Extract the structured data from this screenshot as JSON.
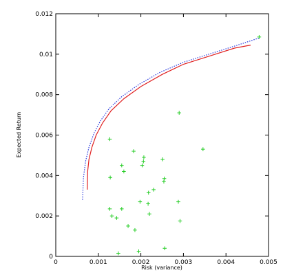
{
  "chart_data": {
    "type": "scatter",
    "xlabel": "Risk (variance)",
    "ylabel": "Expected Return",
    "xlim": [
      0,
      0.005
    ],
    "ylim": [
      0,
      0.012
    ],
    "grid": false,
    "x_ticks": [
      0,
      0.001,
      0.002,
      0.003,
      0.004,
      0.005
    ],
    "x_tick_labels": [
      "0",
      "0.001",
      "0.002",
      "0.003",
      "0.004",
      "0.005"
    ],
    "y_ticks": [
      0,
      0.002,
      0.004,
      0.006,
      0.008,
      0.01,
      0.012
    ],
    "y_tick_labels": [
      "0",
      "0.002",
      "0.004",
      "0.006",
      "0.008",
      "0.01",
      "0.012"
    ],
    "colors": {
      "scatter": "#22cc22",
      "solid_line": "#e02020",
      "dotted_line": "#2233dd",
      "axes": "#000000"
    },
    "series": [
      {
        "style": "line-solid",
        "color": "#e02020",
        "points": [
          [
            0.00074,
            0.0033
          ],
          [
            0.00075,
            0.0042
          ],
          [
            0.00078,
            0.0048
          ],
          [
            0.00085,
            0.0054
          ],
          [
            0.00095,
            0.006
          ],
          [
            0.0011,
            0.0066
          ],
          [
            0.0013,
            0.0072
          ],
          [
            0.0016,
            0.0078
          ],
          [
            0.002,
            0.0084
          ],
          [
            0.0025,
            0.009
          ],
          [
            0.003,
            0.0095
          ],
          [
            0.0036,
            0.0099
          ],
          [
            0.0042,
            0.0103
          ],
          [
            0.00458,
            0.01045
          ]
        ]
      },
      {
        "style": "line-dotted",
        "color": "#2233dd",
        "points": [
          [
            0.00063,
            0.0028
          ],
          [
            0.00065,
            0.0039
          ],
          [
            0.0007,
            0.0047
          ],
          [
            0.00078,
            0.0054
          ],
          [
            0.0009,
            0.0061
          ],
          [
            0.00105,
            0.0067
          ],
          [
            0.00125,
            0.0073
          ],
          [
            0.00155,
            0.0079
          ],
          [
            0.00195,
            0.0085
          ],
          [
            0.00245,
            0.0091
          ],
          [
            0.003,
            0.0096
          ],
          [
            0.0036,
            0.01
          ],
          [
            0.0042,
            0.0104
          ],
          [
            0.00478,
            0.0108
          ]
        ]
      },
      {
        "style": "scatter",
        "marker": "+",
        "color": "#22cc22",
        "points": [
          [
            0.00127,
            0.0058
          ],
          [
            0.00128,
            0.0039
          ],
          [
            0.00127,
            0.00235
          ],
          [
            0.00132,
            0.002
          ],
          [
            0.00143,
            0.0019
          ],
          [
            0.00147,
            0.00015
          ],
          [
            0.00155,
            0.00235
          ],
          [
            0.00155,
            0.0045
          ],
          [
            0.0016,
            0.0042
          ],
          [
            0.0017,
            0.0015
          ],
          [
            0.00183,
            0.0052
          ],
          [
            0.00186,
            0.0013
          ],
          [
            0.00195,
            0.00025
          ],
          [
            0.00198,
            0.0027
          ],
          [
            0.00203,
            0.0045
          ],
          [
            0.00207,
            0.0049
          ],
          [
            0.00206,
            0.0047
          ],
          [
            0.00217,
            0.0026
          ],
          [
            0.00218,
            0.00315
          ],
          [
            0.0022,
            0.0021
          ],
          [
            0.0023,
            0.0033
          ],
          [
            0.00251,
            0.0048
          ],
          [
            0.00254,
            0.0037
          ],
          [
            0.00255,
            0.00385
          ],
          [
            0.00256,
            0.0004
          ],
          [
            0.00288,
            0.0027
          ],
          [
            0.0029,
            0.0071
          ],
          [
            0.00292,
            0.00175
          ],
          [
            0.00346,
            0.0053
          ],
          [
            0.00478,
            0.01085
          ]
        ]
      }
    ]
  }
}
